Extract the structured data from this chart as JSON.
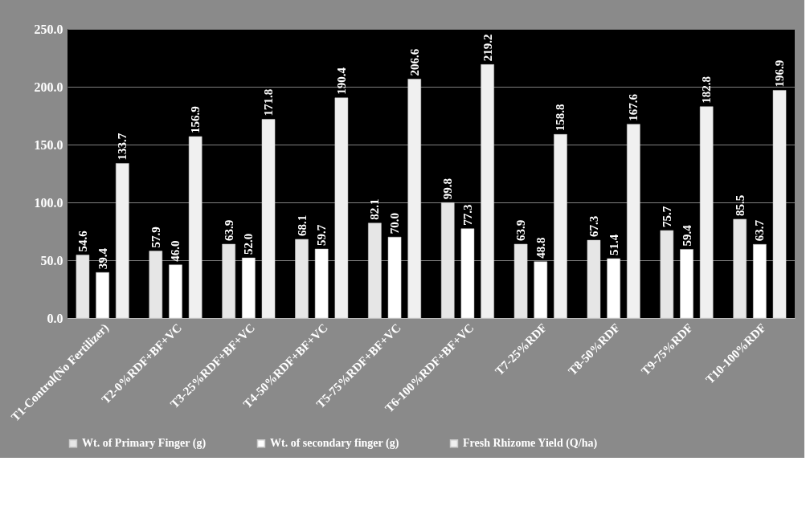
{
  "chart_data": {
    "type": "bar",
    "categories": [
      "T1-Control(No Fertilizer)",
      "T2-0%RDF+BF+VC",
      "T3-25%RDF+BF+VC",
      "T4-50%RDF+BF+VC",
      "T5-75%RDF+BF+VC",
      "T6-100%RDF+BF+VC",
      "T7-25%RDF",
      "T8-50%RDF",
      "T9-75%RDF",
      "T10-100%RDF"
    ],
    "series": [
      {
        "name": "Wt. of Primary Finger (g)",
        "color": "#e6e6e6",
        "values": [
          54.6,
          57.9,
          63.9,
          68.1,
          82.1,
          99.8,
          63.9,
          67.3,
          75.7,
          85.5
        ],
        "value_labels": [
          "54.6",
          "57.9",
          "63.9",
          "68.1",
          "82.1",
          "99.8",
          "63.9",
          "67.3",
          "75.7",
          "85.5"
        ]
      },
      {
        "name": "Wt. of secondary finger (g)",
        "color": "#ffffff",
        "values": [
          39.4,
          46.0,
          52.0,
          59.7,
          70.0,
          77.3,
          48.8,
          51.4,
          59.4,
          63.7
        ],
        "value_labels": [
          "39.4",
          "46.0",
          "52.0",
          "59.7",
          "70.0",
          "77.3",
          "48.8",
          "51.4",
          "59.4",
          "63.7"
        ]
      },
      {
        "name": "Fresh Rhizome Yield (Q/ha)",
        "color": "#f0f0f0",
        "values": [
          133.7,
          156.9,
          171.8,
          190.4,
          206.6,
          219.2,
          158.8,
          167.6,
          182.8,
          196.9
        ],
        "value_labels": [
          "133.7",
          "156.9",
          "171.8",
          "190.4",
          "206.6",
          "219.2",
          "158.8",
          "167.6",
          "182.8",
          "196.9"
        ]
      }
    ],
    "ylim": [
      0,
      250
    ],
    "yticks": [
      {
        "value": 0,
        "label": "0.0"
      },
      {
        "value": 50,
        "label": "50.0"
      },
      {
        "value": 100,
        "label": "100.0"
      },
      {
        "value": 150,
        "label": "150.0"
      },
      {
        "value": 200,
        "label": "200.0"
      },
      {
        "value": 250,
        "label": "250.0"
      }
    ],
    "grid": "y",
    "legend": "bottom"
  }
}
